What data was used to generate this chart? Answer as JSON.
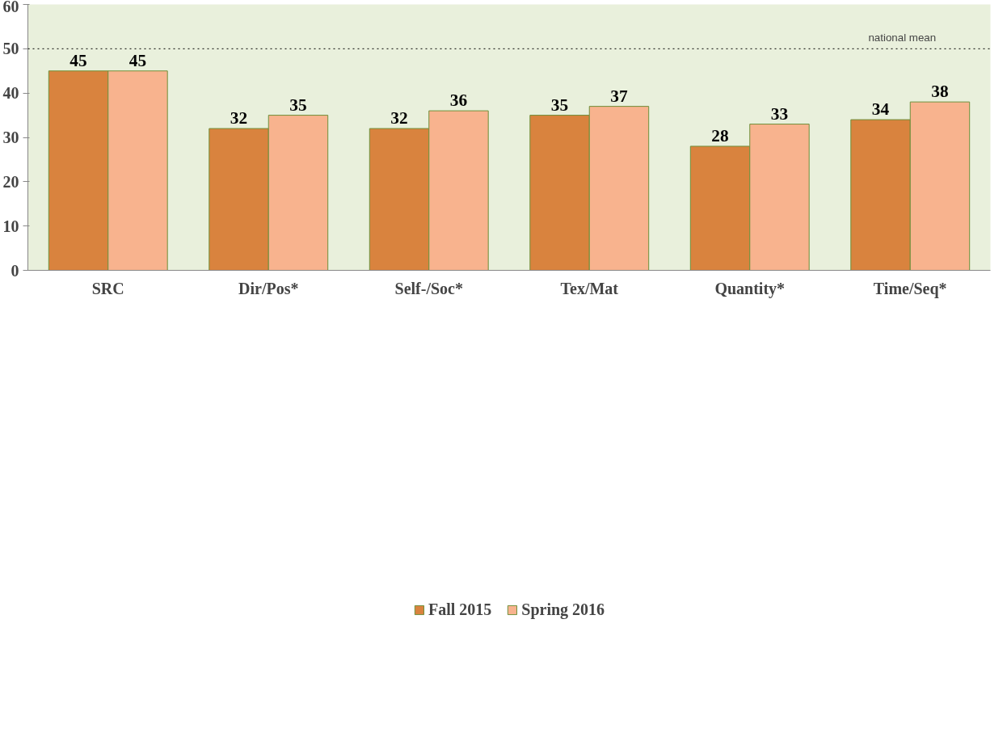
{
  "chart_data": {
    "type": "bar",
    "categories": [
      "SRC",
      "Dir/Pos*",
      "Self-/Soc*",
      "Tex/Mat",
      "Quantity*",
      "Time/Seq*"
    ],
    "series": [
      {
        "name": "Fall 2015",
        "color": "#d9833e",
        "values": [
          45,
          32,
          32,
          35,
          28,
          34
        ]
      },
      {
        "name": "Spring 2016",
        "color": "#f8b38e",
        "values": [
          45,
          35,
          36,
          37,
          33,
          38
        ]
      }
    ],
    "ylim": [
      0,
      60
    ],
    "yticks": [
      0,
      10,
      20,
      30,
      40,
      50,
      60
    ],
    "grid": false,
    "legend": "bottom",
    "data_labels": true,
    "ref_lines": [
      {
        "axis": "y",
        "value": 50,
        "label": "national mean",
        "line_style": "dotted"
      }
    ]
  }
}
